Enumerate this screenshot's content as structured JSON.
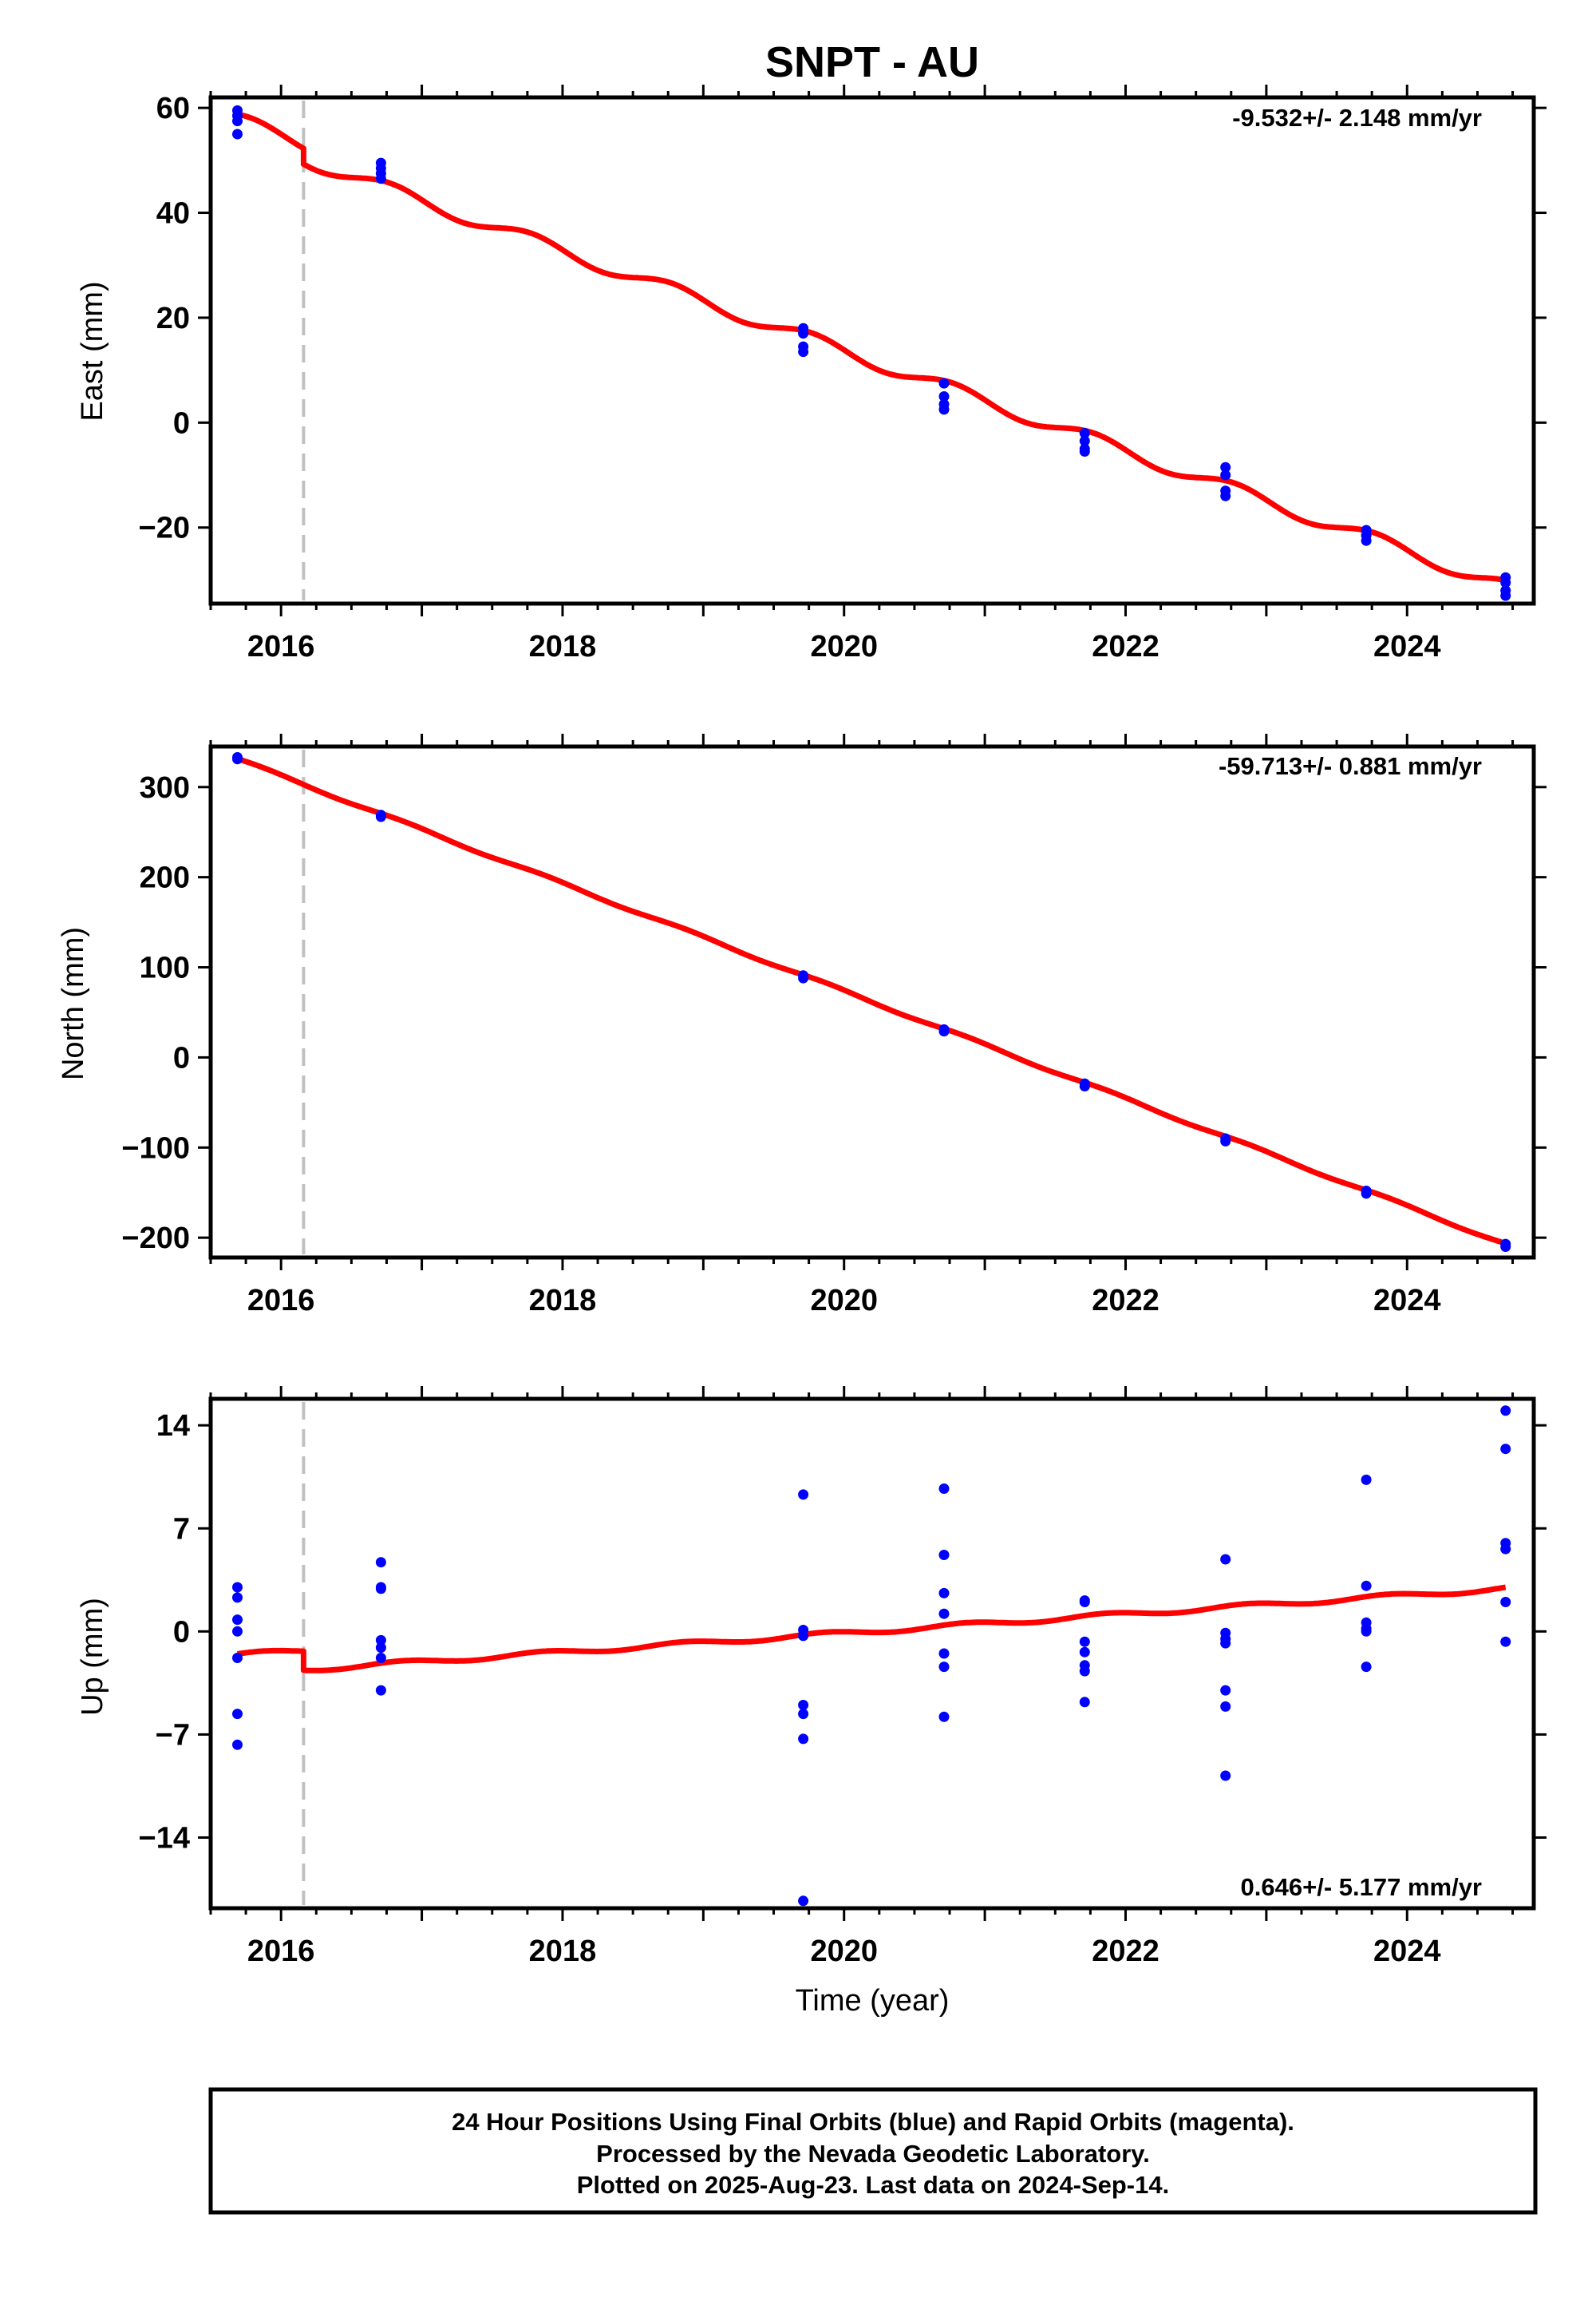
{
  "title": "SNPT - AU",
  "x_label": "Time (year)",
  "colors": {
    "fit": "#ff0000",
    "final": "#0000ff",
    "rapid": "#ff00ff",
    "offset": "#c0c0c0",
    "frame": "#000000"
  },
  "footer": {
    "line1": "24 Hour Positions Using Final Orbits (blue) and Rapid Orbits (magenta).",
    "line2": "Processed by the Nevada Geodetic Laboratory.",
    "line3": "Plotted on 2025-Aug-23. Last data on 2024-Sep-14."
  },
  "chart_data": [
    {
      "type": "scatter",
      "name": "east",
      "ylabel": "East (mm)",
      "rate_text": "-9.532+/- 2.148 mm/yr",
      "xlim": [
        2015.5,
        2024.9
      ],
      "ylim": [
        -34.5,
        62
      ],
      "xticks": [
        2016,
        2018,
        2020,
        2022,
        2024
      ],
      "yticks": [
        -20,
        0,
        20,
        40,
        60
      ],
      "ytick_labels": [
        "−20",
        "0",
        "20",
        "40",
        "60"
      ],
      "offset_x": 2016.16,
      "points": [
        {
          "x": 2015.69,
          "y": 59.5
        },
        {
          "x": 2015.69,
          "y": 58.5
        },
        {
          "x": 2015.69,
          "y": 57.5
        },
        {
          "x": 2015.69,
          "y": 55
        },
        {
          "x": 2016.71,
          "y": 49.5
        },
        {
          "x": 2016.71,
          "y": 48.5
        },
        {
          "x": 2016.71,
          "y": 47.5
        },
        {
          "x": 2016.71,
          "y": 46.5
        },
        {
          "x": 2019.71,
          "y": 18
        },
        {
          "x": 2019.71,
          "y": 17
        },
        {
          "x": 2019.71,
          "y": 14.5
        },
        {
          "x": 2019.71,
          "y": 13.5
        },
        {
          "x": 2020.71,
          "y": 7.5
        },
        {
          "x": 2020.71,
          "y": 5
        },
        {
          "x": 2020.71,
          "y": 3.5
        },
        {
          "x": 2020.71,
          "y": 2.5
        },
        {
          "x": 2021.71,
          "y": -2
        },
        {
          "x": 2021.71,
          "y": -3.5
        },
        {
          "x": 2021.71,
          "y": -5
        },
        {
          "x": 2021.71,
          "y": -5.5
        },
        {
          "x": 2022.71,
          "y": -8.5
        },
        {
          "x": 2022.71,
          "y": -10
        },
        {
          "x": 2022.71,
          "y": -13
        },
        {
          "x": 2022.71,
          "y": -14
        },
        {
          "x": 2023.71,
          "y": -20.5
        },
        {
          "x": 2023.71,
          "y": -21.5
        },
        {
          "x": 2023.71,
          "y": -22.5
        },
        {
          "x": 2024.7,
          "y": -29.5
        },
        {
          "x": 2024.7,
          "y": -30.5
        },
        {
          "x": 2024.7,
          "y": -32
        },
        {
          "x": 2024.7,
          "y": -33
        }
      ],
      "fit": {
        "ref_x": 2015.69,
        "intercept": 57.7,
        "slope": -9.532,
        "step_x": 2016.16,
        "step": -3.0,
        "annual_amp": 1.3,
        "annual_phase": 1.0
      }
    },
    {
      "type": "scatter",
      "name": "north",
      "ylabel": "North (mm)",
      "rate_text": "-59.713+/- 0.881 mm/yr",
      "xlim": [
        2015.5,
        2024.9
      ],
      "ylim": [
        -222,
        345
      ],
      "xticks": [
        2016,
        2018,
        2020,
        2022,
        2024
      ],
      "yticks": [
        -200,
        -100,
        0,
        100,
        200,
        300
      ],
      "ytick_labels": [
        "−200",
        "−100",
        "0",
        "100",
        "200",
        "300"
      ],
      "offset_x": 2016.16,
      "points": [
        {
          "x": 2015.69,
          "y": 333
        },
        {
          "x": 2015.69,
          "y": 331
        },
        {
          "x": 2016.71,
          "y": 269
        },
        {
          "x": 2016.71,
          "y": 267
        },
        {
          "x": 2019.71,
          "y": 91
        },
        {
          "x": 2019.71,
          "y": 88
        },
        {
          "x": 2020.71,
          "y": 31
        },
        {
          "x": 2020.71,
          "y": 29
        },
        {
          "x": 2021.71,
          "y": -29
        },
        {
          "x": 2021.71,
          "y": -32
        },
        {
          "x": 2022.71,
          "y": -90
        },
        {
          "x": 2022.71,
          "y": -93
        },
        {
          "x": 2023.71,
          "y": -148
        },
        {
          "x": 2023.71,
          "y": -151
        },
        {
          "x": 2024.7,
          "y": -207
        },
        {
          "x": 2024.7,
          "y": -210
        }
      ],
      "fit": {
        "ref_x": 2015.69,
        "intercept": 331,
        "slope": -59.713,
        "step_x": 2016.16,
        "step": 0,
        "annual_amp": 1.5,
        "annual_phase": 0.3
      }
    },
    {
      "type": "scatter",
      "name": "up",
      "ylabel": "Up (mm)",
      "rate_text": "0.646+/- 5.177 mm/yr",
      "xlim": [
        2015.5,
        2024.9
      ],
      "ylim": [
        -18.8,
        15.8
      ],
      "xticks": [
        2016,
        2018,
        2020,
        2022,
        2024
      ],
      "yticks": [
        -14,
        -7,
        0,
        7,
        14
      ],
      "ytick_labels": [
        "−14",
        "−7",
        "0",
        "7",
        "14"
      ],
      "offset_x": 2016.16,
      "points": [
        {
          "x": 2015.69,
          "y": 3
        },
        {
          "x": 2015.69,
          "y": 2.3
        },
        {
          "x": 2015.69,
          "y": 0.8
        },
        {
          "x": 2015.69,
          "y": 0
        },
        {
          "x": 2015.69,
          "y": -1.8
        },
        {
          "x": 2015.69,
          "y": -5.6
        },
        {
          "x": 2015.69,
          "y": -7.7
        },
        {
          "x": 2016.71,
          "y": 4.7
        },
        {
          "x": 2016.71,
          "y": 3
        },
        {
          "x": 2016.71,
          "y": 2.9
        },
        {
          "x": 2016.71,
          "y": -0.6
        },
        {
          "x": 2016.71,
          "y": -1.1
        },
        {
          "x": 2016.71,
          "y": -1.8
        },
        {
          "x": 2016.71,
          "y": -4
        },
        {
          "x": 2019.71,
          "y": 9.3
        },
        {
          "x": 2019.71,
          "y": 0.1
        },
        {
          "x": 2019.71,
          "y": -0.3
        },
        {
          "x": 2019.71,
          "y": -5
        },
        {
          "x": 2019.71,
          "y": -5.6
        },
        {
          "x": 2019.71,
          "y": -7.3
        },
        {
          "x": 2019.71,
          "y": -18.3
        },
        {
          "x": 2020.71,
          "y": 9.7
        },
        {
          "x": 2020.71,
          "y": 5.2
        },
        {
          "x": 2020.71,
          "y": 2.6
        },
        {
          "x": 2020.71,
          "y": 1.2
        },
        {
          "x": 2020.71,
          "y": -1.5
        },
        {
          "x": 2020.71,
          "y": -2.4
        },
        {
          "x": 2020.71,
          "y": -5.8
        },
        {
          "x": 2021.71,
          "y": 2.1
        },
        {
          "x": 2021.71,
          "y": 2
        },
        {
          "x": 2021.71,
          "y": -0.7
        },
        {
          "x": 2021.71,
          "y": -1.4
        },
        {
          "x": 2021.71,
          "y": -2.3
        },
        {
          "x": 2021.71,
          "y": -2.7
        },
        {
          "x": 2021.71,
          "y": -4.8
        },
        {
          "x": 2022.71,
          "y": 4.9
        },
        {
          "x": 2022.71,
          "y": -0.1
        },
        {
          "x": 2022.71,
          "y": -0.5
        },
        {
          "x": 2022.71,
          "y": -0.8
        },
        {
          "x": 2022.71,
          "y": -4
        },
        {
          "x": 2022.71,
          "y": -5.1
        },
        {
          "x": 2022.71,
          "y": -9.8
        },
        {
          "x": 2023.71,
          "y": 10.3
        },
        {
          "x": 2023.71,
          "y": 3.1
        },
        {
          "x": 2023.71,
          "y": 0.6
        },
        {
          "x": 2023.71,
          "y": 0.2
        },
        {
          "x": 2023.71,
          "y": 0
        },
        {
          "x": 2023.71,
          "y": -2.4
        },
        {
          "x": 2024.7,
          "y": 15
        },
        {
          "x": 2024.7,
          "y": 12.4
        },
        {
          "x": 2024.7,
          "y": 6
        },
        {
          "x": 2024.7,
          "y": 5.6
        },
        {
          "x": 2024.7,
          "y": 2
        },
        {
          "x": 2024.7,
          "y": -0.7
        }
      ],
      "fit": {
        "ref_x": 2015.69,
        "intercept": -1.6,
        "slope": 0.646,
        "step_x": 2016.16,
        "step": -1.3,
        "annual_amp": 0.15,
        "annual_phase": 0.5
      }
    }
  ]
}
